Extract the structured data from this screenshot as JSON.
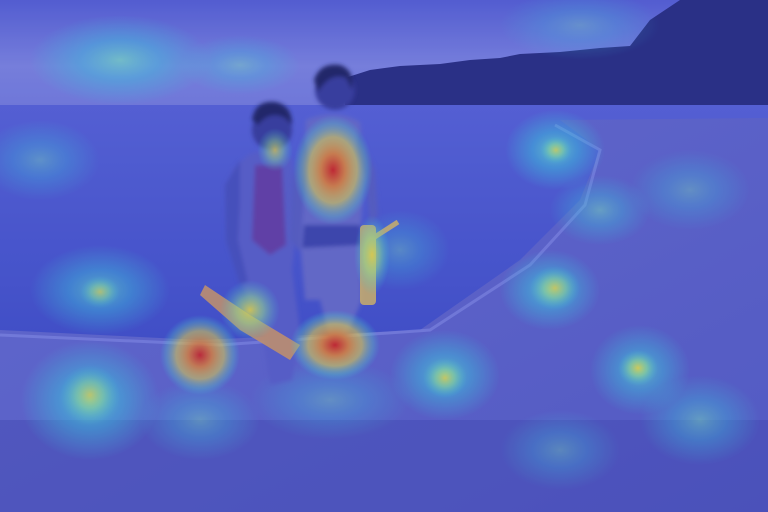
{
  "image": {
    "kind": "attention-heatmap-overlay",
    "scene": "beach-at-dusk",
    "subjects": [
      "person-left",
      "person-right"
    ],
    "colormap": "jet",
    "colors": {
      "sky": "#6b74d6",
      "water": "#4f5fd0",
      "sand": "#6a6fcc",
      "treeline": "#2a2f7a",
      "heat_low": "#2f3fd0",
      "heat_cyan": "#3fe0e0",
      "heat_yellow": "#f2e040",
      "heat_orange": "#f08a2a",
      "heat_red": "#d2201a"
    }
  }
}
